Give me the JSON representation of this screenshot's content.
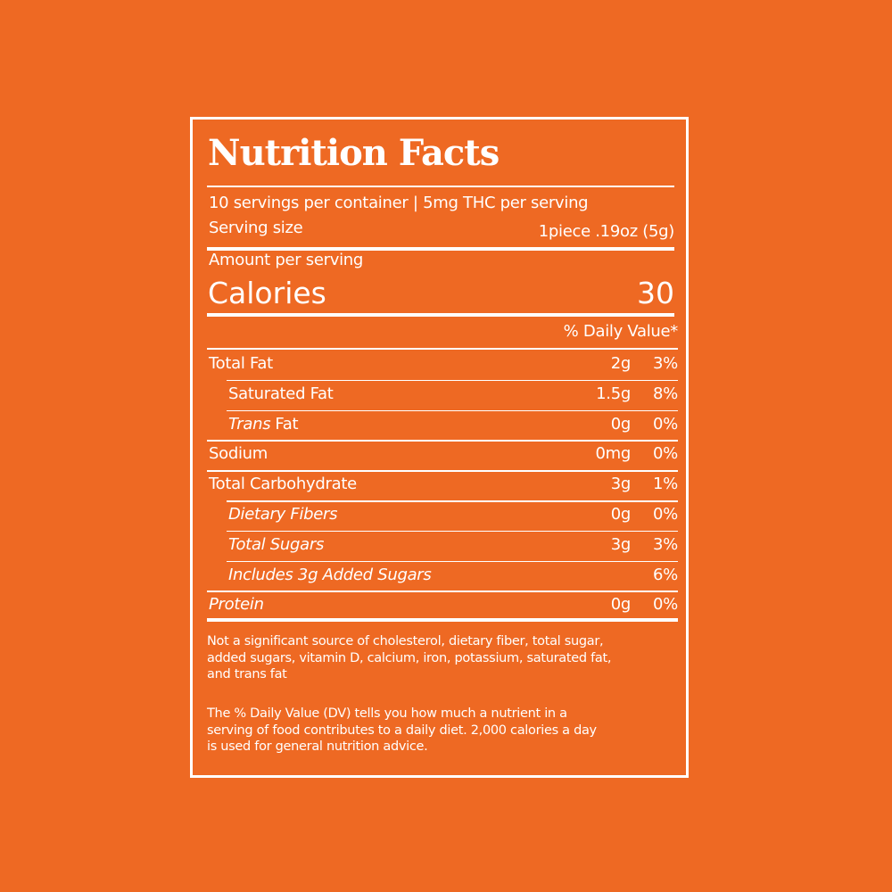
{
  "label": {
    "title": "Nutrition Facts",
    "servings": "10 servings per container | 5mg THC per serving",
    "serving_size_label": "Serving size",
    "serving_size_value": "1piece .19oz (5g)",
    "amount_per_serving": "Amount per serving",
    "calories_label": "Calories",
    "calories_value": "30",
    "daily_value_header": "% Daily Value*",
    "rows": [
      {
        "name": [
          "Total Fat"
        ],
        "amount": "2g",
        "dv": "3%",
        "indent": false,
        "italic": [
          false
        ]
      },
      {
        "name": [
          "Saturated Fat"
        ],
        "amount": "1.5g",
        "dv": "8%",
        "indent": true,
        "italic": [
          false
        ]
      },
      {
        "name": [
          "Trans",
          "Fat"
        ],
        "amount": "0g",
        "dv": "0%",
        "indent": true,
        "italic": [
          true,
          false
        ]
      },
      {
        "name": [
          "Sodium"
        ],
        "amount": "0mg",
        "dv": "0%",
        "indent": false,
        "italic": [
          false
        ]
      },
      {
        "name": [
          "Total Carbohydrate"
        ],
        "amount": "3g",
        "dv": "1%",
        "indent": false,
        "italic": [
          false
        ]
      },
      {
        "name": [
          "Dietary Fibers"
        ],
        "amount": "0g",
        "dv": "0%",
        "indent": true,
        "italic": [
          true
        ]
      },
      {
        "name": [
          "Total Sugars"
        ],
        "amount": "3g",
        "dv": "3%",
        "indent": true,
        "italic": [
          true
        ]
      },
      {
        "name": [
          "Includes 3g Added Sugars"
        ],
        "amount": null,
        "dv": "6%",
        "indent": true,
        "italic": [
          true
        ]
      },
      {
        "name": [
          "Protein"
        ],
        "amount": "0g",
        "dv": "0%",
        "indent": false,
        "italic": [
          true
        ]
      }
    ],
    "footnote_1": [
      "Not a significant source of cholesterol, dietary fiber, total sugar,",
      "added sugars, vitamin D, calcium, iron, potassium, saturated fat,",
      "and trans fat"
    ],
    "footnote_2": [
      "The % Daily Value (DV) tells you how much a nutrient in a",
      "serving of food contributes to a daily diet. 2,000 calories a day",
      "is used for general nutrition advice."
    ]
  }
}
